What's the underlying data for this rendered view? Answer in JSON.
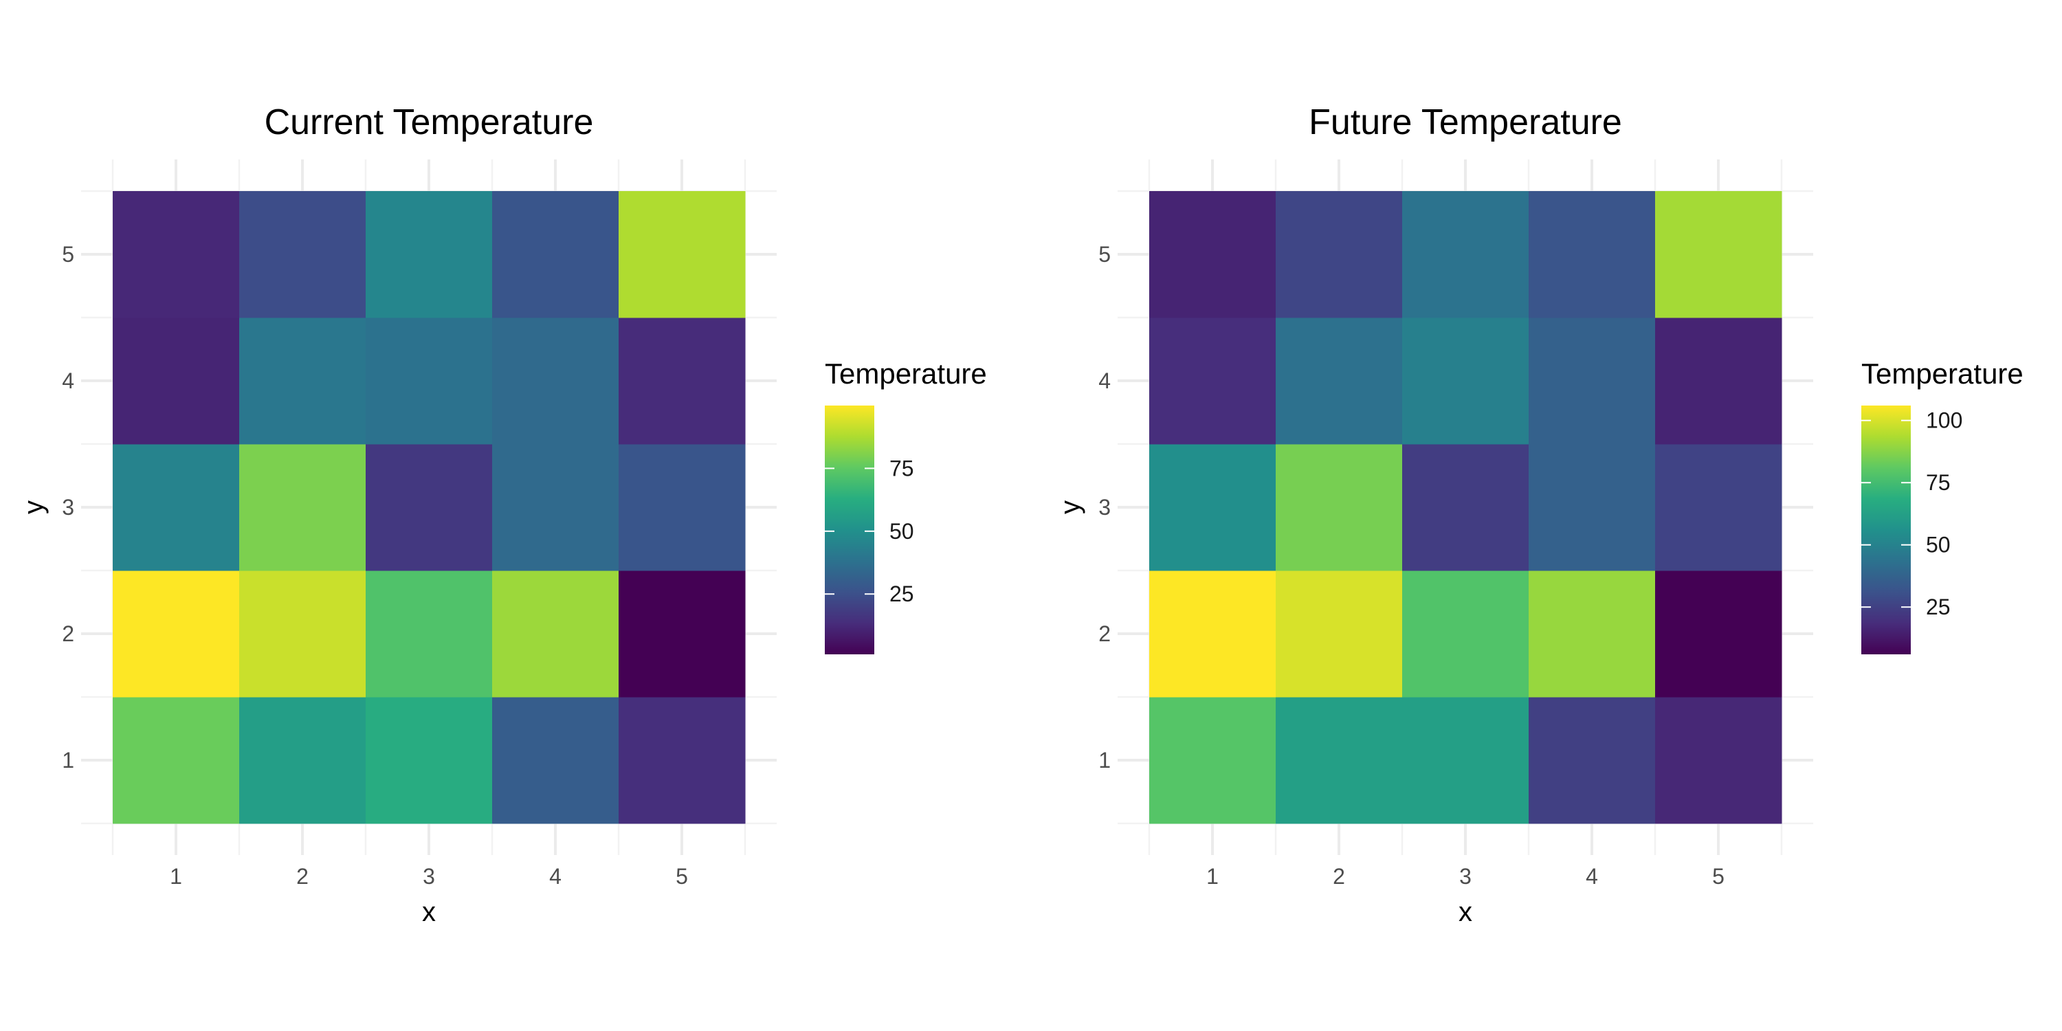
{
  "chart_data": [
    {
      "type": "heatmap",
      "title": "Current Temperature",
      "xlabel": "x",
      "ylabel": "y",
      "x": [
        1,
        2,
        3,
        4,
        5
      ],
      "y": [
        1,
        2,
        3,
        4,
        5
      ],
      "x_tick_labels": [
        "1",
        "2",
        "3",
        "4",
        "5"
      ],
      "y_tick_labels": [
        "1",
        "2",
        "3",
        "4",
        "5"
      ],
      "values": [
        [
          77,
          56,
          62,
          30,
          14
        ],
        [
          100,
          92,
          72,
          85,
          1
        ],
        [
          45,
          80,
          17,
          35,
          27
        ],
        [
          11,
          40,
          38,
          35,
          13
        ],
        [
          12,
          24,
          46,
          27,
          88
        ]
      ],
      "legend": {
        "title": "Temperature",
        "placement": "right",
        "scale": "viridis",
        "limits": [
          1,
          100
        ],
        "breaks": [
          25,
          50,
          75
        ],
        "break_labels": [
          "25",
          "50",
          "75"
        ]
      },
      "grid": true
    },
    {
      "type": "heatmap",
      "title": "Future Temperature",
      "xlabel": "x",
      "ylabel": "y",
      "x": [
        1,
        2,
        3,
        4,
        5
      ],
      "y": [
        1,
        2,
        3,
        4,
        5
      ],
      "x_tick_labels": [
        "1",
        "2",
        "3",
        "4",
        "5"
      ],
      "y_tick_labels": [
        "1",
        "2",
        "3",
        "4",
        "5"
      ],
      "values": [
        [
          79,
          62,
          62,
          25,
          17
        ],
        [
          106,
          100,
          78,
          90,
          6
        ],
        [
          55,
          85,
          24,
          37,
          26
        ],
        [
          19,
          43,
          49,
          37,
          16
        ],
        [
          16,
          27,
          44,
          32,
          92
        ]
      ],
      "legend": {
        "title": "Temperature",
        "placement": "right",
        "scale": "viridis",
        "limits": [
          6,
          106
        ],
        "breaks": [
          25,
          50,
          75,
          100
        ],
        "break_labels": [
          "25",
          "50",
          "75",
          "100"
        ]
      },
      "grid": true
    }
  ]
}
